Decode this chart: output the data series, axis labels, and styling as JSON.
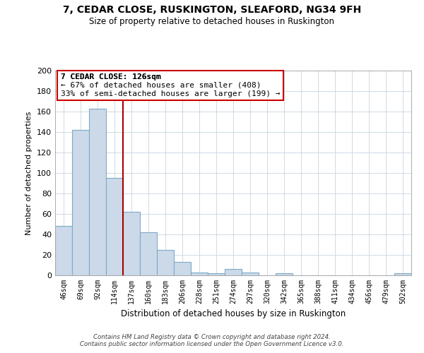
{
  "title": "7, CEDAR CLOSE, RUSKINGTON, SLEAFORD, NG34 9FH",
  "subtitle": "Size of property relative to detached houses in Ruskington",
  "xlabel": "Distribution of detached houses by size in Ruskington",
  "ylabel": "Number of detached properties",
  "bar_labels": [
    "46sqm",
    "69sqm",
    "92sqm",
    "114sqm",
    "137sqm",
    "160sqm",
    "183sqm",
    "206sqm",
    "228sqm",
    "251sqm",
    "274sqm",
    "297sqm",
    "320sqm",
    "342sqm",
    "365sqm",
    "388sqm",
    "411sqm",
    "434sqm",
    "456sqm",
    "479sqm",
    "502sqm"
  ],
  "bar_values": [
    48,
    142,
    163,
    95,
    62,
    42,
    25,
    13,
    3,
    2,
    6,
    3,
    0,
    2,
    0,
    0,
    0,
    0,
    0,
    0,
    2
  ],
  "bar_color": "#ccd9e8",
  "bar_edge_color": "#7baac8",
  "vline_x": 3.5,
  "vline_color": "#aa0000",
  "ylim": [
    0,
    200
  ],
  "yticks": [
    0,
    20,
    40,
    60,
    80,
    100,
    120,
    140,
    160,
    180,
    200
  ],
  "annotation_title": "7 CEDAR CLOSE: 126sqm",
  "annotation_line1": "← 67% of detached houses are smaller (408)",
  "annotation_line2": "33% of semi-detached houses are larger (199) →",
  "annotation_box_color": "#ffffff",
  "annotation_box_edge": "#cc0000",
  "footer_line1": "Contains HM Land Registry data © Crown copyright and database right 2024.",
  "footer_line2": "Contains public sector information licensed under the Open Government Licence v3.0.",
  "background_color": "#ffffff",
  "grid_color": "#c8d4e0"
}
